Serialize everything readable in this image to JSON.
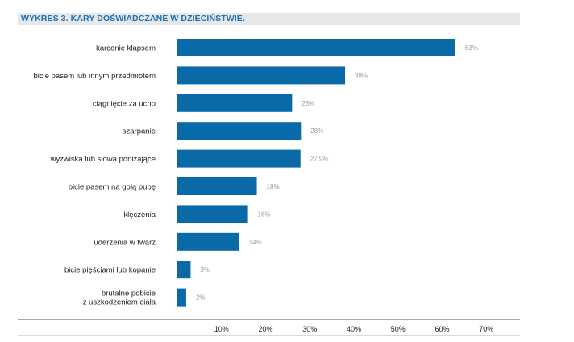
{
  "chart_data": {
    "type": "bar",
    "orientation": "horizontal",
    "title": "WYKRES 3. KARY DOŚWIADCZANE W DZIECIŃSTWIE.",
    "categories": [
      "karcenie klapsem",
      "bicie pasem lub innym przedmiotem",
      "ciągnięcie za ucho",
      "szarpanie",
      "wyzwiska lub słowa poniżające",
      "bicie pasem na gołą pupę",
      "klęczenia",
      "uderzenia w twarz",
      "bicie pięściami lub kopanie",
      "brutalne pobicie\nz uszkodzeniem ciała"
    ],
    "values": [
      63,
      38,
      26,
      28,
      27.9,
      18,
      16,
      14,
      3,
      2
    ],
    "value_labels": [
      "63%",
      "38%",
      "26%",
      "28%",
      "27,9%",
      "18%",
      "16%",
      "14%",
      "3%",
      "2%"
    ],
    "xticks": [
      "10%",
      "20%",
      "30%",
      "40%",
      "50%",
      "60%",
      "70%"
    ],
    "xlim": [
      0,
      70
    ],
    "bar_color": "#0a6aa8",
    "title_color": "#1d72b0"
  }
}
